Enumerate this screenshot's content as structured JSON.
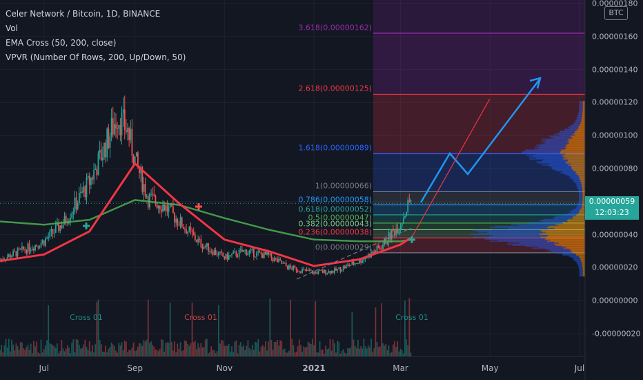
{
  "legend": {
    "title": "Celer Network / Bitcoin, 1D, BINANCE",
    "vol": "Vol",
    "ema": "EMA Cross (50, 200, close)",
    "vpvr": "VPVR (Number Of Rows, 200, Up/Down, 50)"
  },
  "price_axis": {
    "unit": "BTC",
    "current_price": "0.00000059",
    "countdown": "12:03:23",
    "up_color": "#26a69a",
    "down_color": "#ef5350"
  },
  "chart_data": {
    "type": "candlestick",
    "title": "Celer Network / Bitcoin, 1D, BINANCE",
    "x_ticks": [
      "Jul",
      "Sep",
      "Nov",
      "2021",
      "Mar",
      "May",
      "Jul"
    ],
    "y_ticks": [
      1.8e-06,
      1.6e-06,
      1.4e-06,
      1.2e-06,
      1e-06,
      8e-07,
      6e-07,
      4e-07,
      2e-07,
      0,
      -2e-07
    ],
    "y_tick_labels": [
      "0.00000180",
      "0.00000160",
      "0.00000140",
      "0.00000120",
      "0.00000100",
      "0.00000080",
      "0.00000060",
      "0.00000040",
      "0.00000020",
      "0.00000000",
      "-0.00000020"
    ],
    "ylim": [
      -2.4e-07,
      1.8e-06
    ],
    "series": [
      {
        "name": "Price",
        "x": [
          "2020-06-01",
          "2020-06-15",
          "2020-07-01",
          "2020-07-15",
          "2020-08-01",
          "2020-08-10",
          "2020-08-20",
          "2020-08-27",
          "2020-09-01",
          "2020-09-10",
          "2020-09-20",
          "2020-10-01",
          "2020-10-15",
          "2020-11-01",
          "2020-11-15",
          "2020-12-01",
          "2020-12-15",
          "2021-01-01",
          "2021-01-15",
          "2021-02-01",
          "2021-02-15",
          "2021-03-01",
          "2021-03-08"
        ],
        "values": [
          2.5e-07,
          3e-07,
          3.6e-07,
          4.8e-07,
          7.2e-07,
          9e-07,
          1.12e-06,
          1.03e-06,
          8.5e-07,
          6.2e-07,
          5.8e-07,
          4.8e-07,
          3.5e-07,
          2.6e-07,
          3e-07,
          2.7e-07,
          2e-07,
          1.7e-07,
          1.8e-07,
          2.4e-07,
          3.2e-07,
          4.7e-07,
          6.2e-07
        ]
      },
      {
        "name": "EMA 50",
        "x": [
          "2020-06-01",
          "2020-07-01",
          "2020-08-01",
          "2020-09-01",
          "2020-10-01",
          "2020-11-01",
          "2020-12-01",
          "2021-01-01",
          "2021-02-01",
          "2021-03-01",
          "2021-03-08"
        ],
        "values": [
          2.4e-07,
          2.8e-07,
          4.2e-07,
          8.3e-07,
          5.9e-07,
          3.7e-07,
          3e-07,
          2.1e-07,
          2.5e-07,
          3.4e-07,
          3.8e-07
        ]
      },
      {
        "name": "EMA 200",
        "x": [
          "2020-06-01",
          "2020-07-01",
          "2020-08-01",
          "2020-09-01",
          "2020-10-01",
          "2020-11-01",
          "2020-12-01",
          "2021-01-01",
          "2021-02-01",
          "2021-03-01",
          "2021-03-08"
        ],
        "values": [
          4.8e-07,
          4.6e-07,
          4.9e-07,
          6.1e-07,
          5.8e-07,
          5e-07,
          4.3e-07,
          3.7e-07,
          3.6e-07,
          3.6e-07,
          3.7e-07
        ]
      }
    ],
    "annotations": {
      "fib_levels": [
        {
          "label": "3.618(0.00000162)",
          "value": 1.62e-06,
          "color": "#9c27b0"
        },
        {
          "label": "2.618(0.00000125)",
          "value": 1.25e-06,
          "color": "#f23645"
        },
        {
          "label": "1.618(0.00000089)",
          "value": 8.9e-07,
          "color": "#2962ff"
        },
        {
          "label": "1(0.00000066)",
          "value": 6.6e-07,
          "color": "#787b86"
        },
        {
          "label": "0.786(0.00000058)",
          "value": 5.8e-07,
          "color": "#2196f3"
        },
        {
          "label": "0.618(0.00000052)",
          "value": 5.2e-07,
          "color": "#26a69a"
        },
        {
          "label": "0.5(0.00000047)",
          "value": 4.7e-07,
          "color": "#4caf50"
        },
        {
          "label": "0.382(0.00000043)",
          "value": 4.3e-07,
          "color": "#81c784"
        },
        {
          "label": "0.236(0.00000038)",
          "value": 3.8e-07,
          "color": "#f23645"
        },
        {
          "label": "0(0.00000029)",
          "value": 2.9e-07,
          "color": "#787b86"
        }
      ],
      "cross_labels": [
        {
          "label": "Cross 01",
          "color": "#26a69a"
        },
        {
          "label": "Cross 01",
          "color": "#ef5350"
        },
        {
          "label": "Cross 01",
          "color": "#26a69a"
        }
      ]
    }
  }
}
